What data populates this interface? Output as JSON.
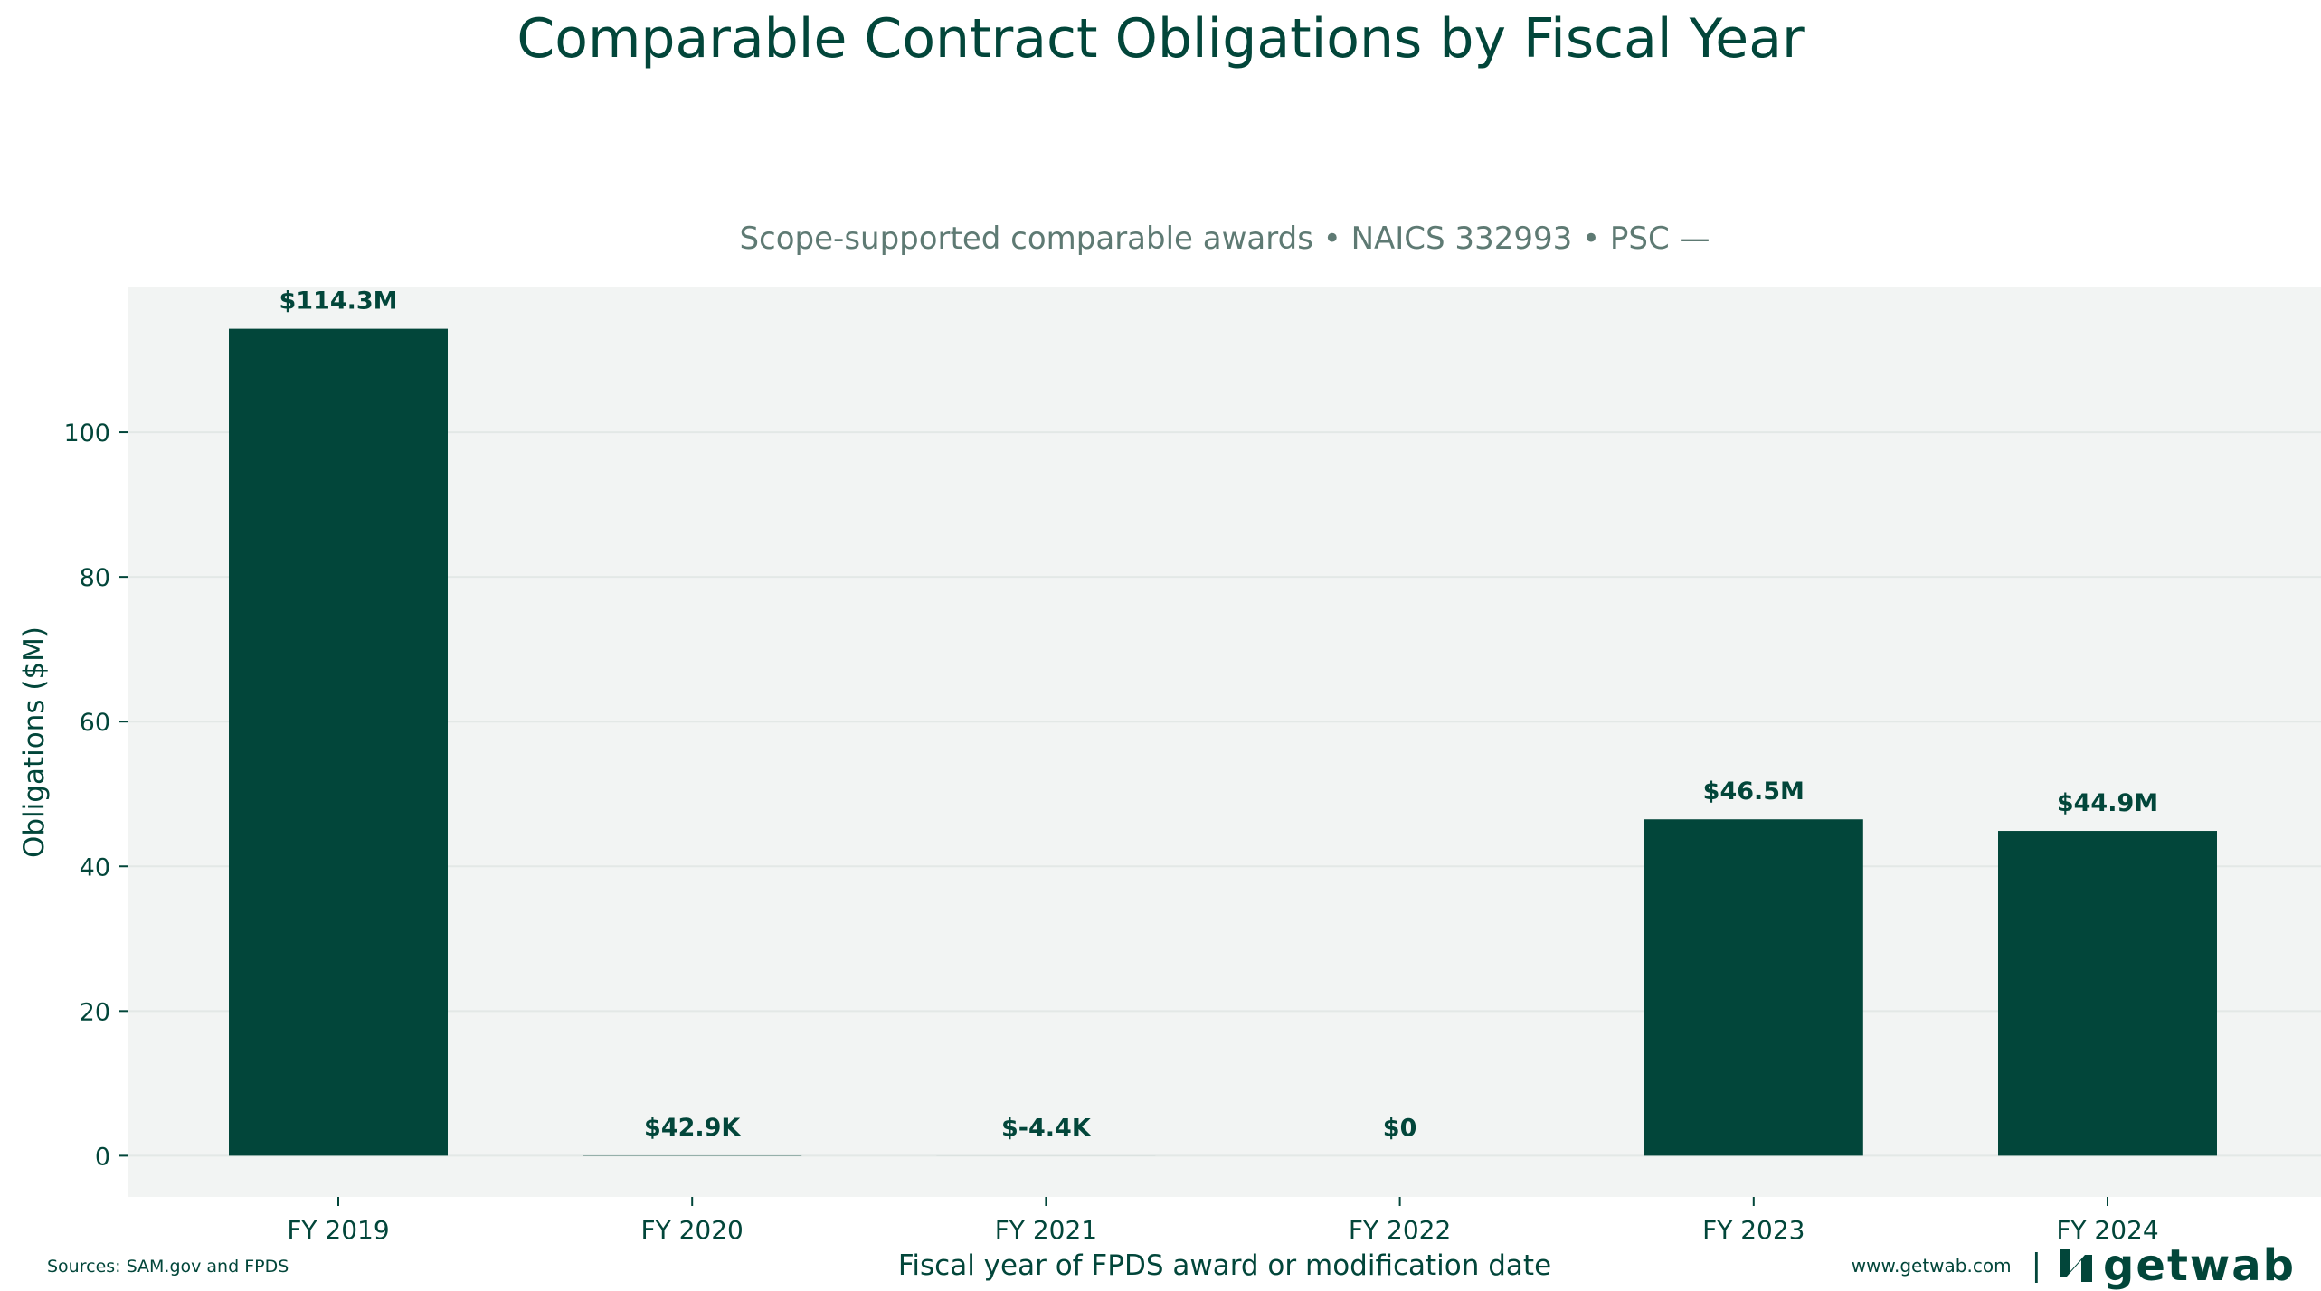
{
  "chart_data": {
    "type": "bar",
    "title": "Comparable Contract Obligations by Fiscal Year",
    "subtitle": "Scope-supported comparable awards • NAICS 332993 • PSC —",
    "xlabel": "Fiscal year of FPDS award or modification date",
    "ylabel": "Obligations ($M)",
    "categories": [
      "FY 2019",
      "FY 2020",
      "FY 2021",
      "FY 2022",
      "FY 2023",
      "FY 2024"
    ],
    "values": [
      114.3,
      0.0429,
      -0.0044,
      0,
      46.5,
      44.9
    ],
    "data_labels": [
      "$114.3M",
      "$42.9K",
      "$-4.4K",
      "$0",
      "$46.5M",
      "$44.9M"
    ],
    "yticks": [
      0,
      20,
      40,
      60,
      80,
      100
    ],
    "ylim": [
      -5.7,
      120
    ],
    "grid": true,
    "colors": {
      "bar": "#02463a",
      "plot_background": "#f2f4f3",
      "grid": "#e3e8e6"
    }
  },
  "footer": {
    "sources": "Sources: SAM.gov and FPDS",
    "url": "www.getwab.com",
    "separator": "|",
    "brand_name": "getwab",
    "brand_icon": "getwab-logo-icon"
  }
}
